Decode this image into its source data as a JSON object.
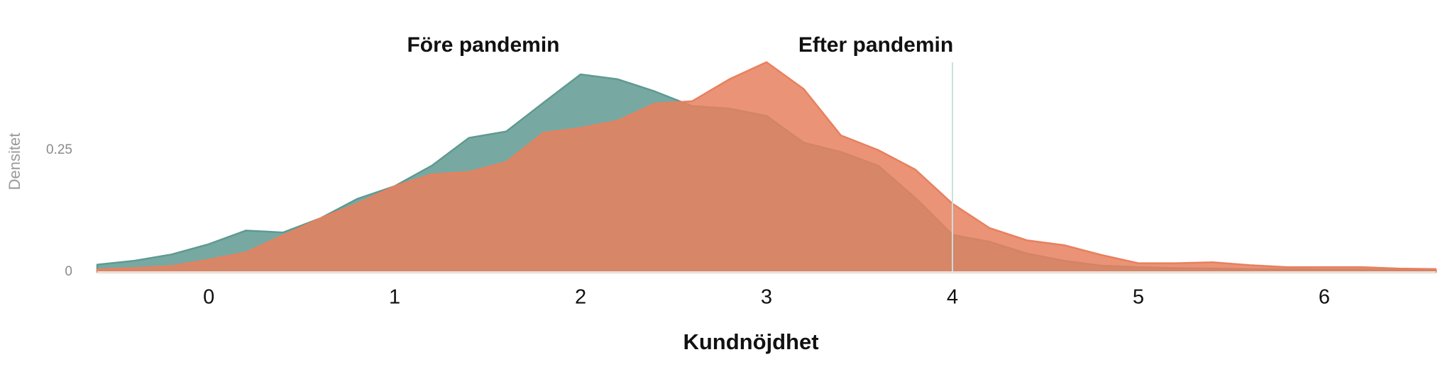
{
  "chart_data": {
    "type": "area",
    "x_label": "Kundnöjdhet",
    "y_label": "Densitet",
    "x": [
      -0.6,
      -0.4,
      -0.2,
      0,
      0.2,
      0.4,
      0.6,
      0.8,
      1.0,
      1.2,
      1.4,
      1.6,
      1.8,
      2.0,
      2.2,
      2.4,
      2.6,
      2.8,
      3.0,
      3.2,
      3.4,
      3.6,
      3.8,
      4.0,
      4.2,
      4.4,
      4.6,
      4.8,
      5.0,
      5.2,
      5.4,
      5.6,
      5.8,
      6.0,
      6.2,
      6.4,
      6.6
    ],
    "series": [
      {
        "name": "Före pandemin",
        "color": "#5f9a92",
        "values": [
          0.015,
          0.023,
          0.036,
          0.057,
          0.085,
          0.081,
          0.11,
          0.15,
          0.176,
          0.218,
          0.275,
          0.288,
          0.347,
          0.405,
          0.395,
          0.37,
          0.34,
          0.335,
          0.32,
          0.265,
          0.246,
          0.218,
          0.152,
          0.076,
          0.062,
          0.038,
          0.023,
          0.013,
          0.01,
          0.008,
          0.007,
          0.006,
          0.006,
          0.005,
          0.005,
          0.004,
          0.004
        ]
      },
      {
        "name": "Efter pandemin",
        "color": "#e8805e",
        "values": [
          0.005,
          0.008,
          0.012,
          0.025,
          0.04,
          0.075,
          0.11,
          0.14,
          0.176,
          0.2,
          0.205,
          0.225,
          0.285,
          0.295,
          0.31,
          0.345,
          0.35,
          0.395,
          0.43,
          0.375,
          0.28,
          0.25,
          0.21,
          0.14,
          0.09,
          0.065,
          0.055,
          0.035,
          0.018,
          0.018,
          0.02,
          0.014,
          0.01,
          0.01,
          0.01,
          0.007,
          0.006
        ]
      }
    ],
    "xlim": [
      -0.6,
      6.6
    ],
    "ylim": [
      0,
      0.45
    ],
    "xticks": [
      0,
      1,
      2,
      3,
      4,
      5,
      6
    ],
    "yticks": [
      0,
      0.25
    ],
    "reference_line_x": 4,
    "grid": false
  }
}
